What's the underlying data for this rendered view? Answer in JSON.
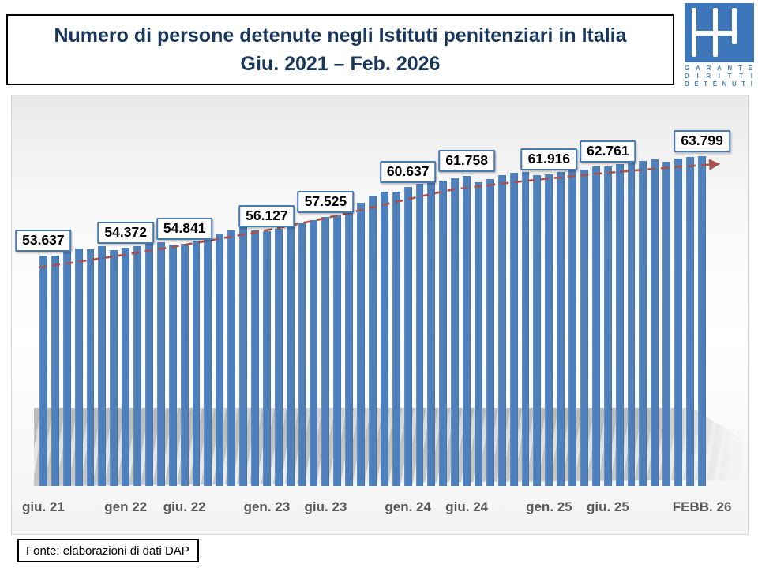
{
  "title": {
    "line1": "Numero di persone detenute negli Istituti penitenziari in Italia",
    "line2": "Giu. 2021 – Feb. 2026"
  },
  "logo": {
    "name": "garante-diritti-detenuti-logo",
    "square_color": "#3D76B9",
    "glyph_color": "#FFFFFF",
    "text_color": "#4A7EBB",
    "lines": [
      "GARANTE",
      "DIRITTI",
      "DETENUTI"
    ]
  },
  "source": {
    "label": "Fonte: elaborazioni di dati DAP"
  },
  "colors": {
    "bar": "#4E80BC",
    "data_label_border": "#4779B2",
    "trend_line": "#A8524D",
    "title_text": "#17375E",
    "axis_text": "#595959"
  },
  "chart_data": {
    "type": "bar",
    "title": "Numero di persone detenute negli Istituti penitenziari in Italia, Giu. 2021 – Feb. 2026",
    "xlabel": "",
    "ylabel": "",
    "ylim": [
      30000,
      70000
    ],
    "grid": false,
    "legend": false,
    "n_bars": 57,
    "period": {
      "start": "giu. 2021",
      "end": "feb. 2026",
      "step": "monthly"
    },
    "values": [
      53637,
      53619,
      53964,
      54307,
      54235,
      54593,
      54134,
      54372,
      54609,
      54975,
      54977,
      54771,
      54841,
      55134,
      55637,
      55827,
      56225,
      56524,
      56196,
      56127,
      56319,
      56674,
      56875,
      57230,
      57525,
      57749,
      58428,
      58987,
      59715,
      60116,
      60166,
      60637,
      60980,
      61049,
      61252,
      61547,
      61758,
      61134,
      61453,
      61862,
      62110,
      62153,
      61861,
      61916,
      62165,
      62304,
      62445,
      62722,
      62761,
      62986,
      63139,
      63296,
      63462,
      63240,
      63524,
      63689,
      63799
    ],
    "values_note": "only labeled anchors are exact; intermediate bars estimated from pixel heights",
    "data_labels": [
      {
        "index": 0,
        "text": "53.637"
      },
      {
        "index": 7,
        "text": "54.372"
      },
      {
        "index": 12,
        "text": "54.841"
      },
      {
        "index": 19,
        "text": "56.127"
      },
      {
        "index": 24,
        "text": "57.525"
      },
      {
        "index": 31,
        "text": "60.637"
      },
      {
        "index": 36,
        "text": "61.758"
      },
      {
        "index": 43,
        "text": "61.916"
      },
      {
        "index": 48,
        "text": "62.761"
      },
      {
        "index": 56,
        "text": "63.799"
      }
    ],
    "axis_tick_labels": [
      {
        "index": 0,
        "label": "giu. 21"
      },
      {
        "index": 7,
        "label": "gen 22"
      },
      {
        "index": 12,
        "label": "giu. 22"
      },
      {
        "index": 19,
        "label": "gen. 23"
      },
      {
        "index": 24,
        "label": "giu. 23"
      },
      {
        "index": 31,
        "label": "gen. 24"
      },
      {
        "index": 36,
        "label": "giu. 24"
      },
      {
        "index": 43,
        "label": "gen. 25"
      },
      {
        "index": 48,
        "label": "giu. 25"
      },
      {
        "index": 56,
        "label": "FEBB. 26"
      }
    ],
    "trend": {
      "type": "dashed-trend-line",
      "color": "#A8524D",
      "arrow_end": true
    }
  }
}
